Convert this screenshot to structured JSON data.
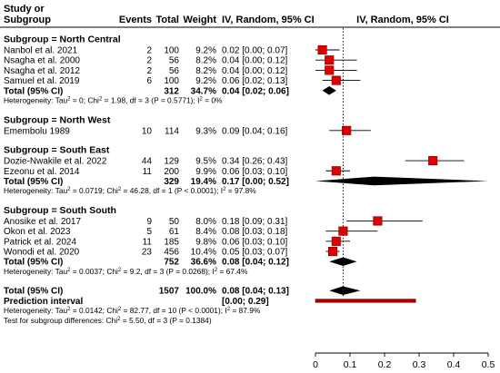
{
  "headers": {
    "study_line1": "Study or",
    "study_line2": "Subgroup",
    "events": "Events",
    "total": "Total",
    "weight": "Weight",
    "ci": "IV, Random, 95% CI",
    "plot": "IV, Random, 95% CI"
  },
  "chart_data": {
    "type": "forest",
    "x_ticks": [
      "0",
      "0.1",
      "0.2",
      "0.3",
      "0.4",
      "0.5"
    ],
    "xlim": [
      0,
      0.5
    ],
    "reference_line": 0.08,
    "rows": [
      {
        "kind": "group",
        "label": "Subgroup = North Central"
      },
      {
        "kind": "study",
        "label": "Nanbol et al. 2021",
        "events": "2",
        "total": "100",
        "weight": "9.2%",
        "ci_text": "0.02 [0.00; 0.07]",
        "est": 0.02,
        "lo": 0.0,
        "hi": 0.07
      },
      {
        "kind": "study",
        "label": "Nsagha  et al. 2000",
        "events": "2",
        "total": "56",
        "weight": "8.2%",
        "ci_text": "0.04 [0.00; 0.12]",
        "est": 0.04,
        "lo": 0.0,
        "hi": 0.12
      },
      {
        "kind": "study",
        "label": "Nsagha  et al. 2012",
        "events": "2",
        "total": "56",
        "weight": "8.2%",
        "ci_text": "0.04 [0.00; 0.12]",
        "est": 0.04,
        "lo": 0.0,
        "hi": 0.12
      },
      {
        "kind": "study",
        "label": "Samuel et al. 2019",
        "events": "6",
        "total": "100",
        "weight": "9.2%",
        "ci_text": "0.06 [0.02; 0.13]",
        "est": 0.06,
        "lo": 0.02,
        "hi": 0.13
      },
      {
        "kind": "total",
        "label": "Total (95% CI)",
        "total": "312",
        "weight": "34.7%",
        "ci_text": "0.04 [0.02; 0.06]",
        "est": 0.04,
        "lo": 0.02,
        "hi": 0.06
      },
      {
        "kind": "het",
        "pre": "Heterogeneity: Tau",
        "sup1": "2",
        "mid": " = 0; Chi",
        "sup2": "2",
        "post": " = 1.98, df = 3 (P = 0.5771); I",
        "sup3": "2",
        "end": " = 0%"
      },
      {
        "kind": "gap"
      },
      {
        "kind": "group",
        "label": "Subgroup = North West"
      },
      {
        "kind": "study",
        "label": "Emembolu  1989",
        "events": "10",
        "total": "114",
        "weight": "9.3%",
        "ci_text": "0.09 [0.04; 0.16]",
        "est": 0.09,
        "lo": 0.04,
        "hi": 0.16
      },
      {
        "kind": "gap"
      },
      {
        "kind": "group",
        "label": "Subgroup = South East"
      },
      {
        "kind": "study",
        "label": "Dozie-Nwakile et al. 2022",
        "events": "44",
        "total": "129",
        "weight": "9.5%",
        "ci_text": "0.34 [0.26; 0.43]",
        "est": 0.34,
        "lo": 0.26,
        "hi": 0.43
      },
      {
        "kind": "study",
        "label": "Ezeonu et al. 2014",
        "events": "11",
        "total": "200",
        "weight": "9.9%",
        "ci_text": "0.06 [0.03; 0.10]",
        "est": 0.06,
        "lo": 0.03,
        "hi": 0.1
      },
      {
        "kind": "total",
        "label": "Total (95% CI)",
        "total": "329",
        "weight": "19.4%",
        "ci_text": "0.17 [0.00; 0.52]",
        "est": 0.17,
        "lo": 0.0,
        "hi": 0.52
      },
      {
        "kind": "het",
        "pre": "Heterogeneity: Tau",
        "sup1": "2",
        "mid": " = 0.0719; Chi",
        "sup2": "2",
        "post": " = 46.28, df = 1 (P < 0.0001); I",
        "sup3": "2",
        "end": " = 97.8%"
      },
      {
        "kind": "gap"
      },
      {
        "kind": "group",
        "label": "Subgroup = South South"
      },
      {
        "kind": "study",
        "label": "Anosike  et al. 2017",
        "events": "9",
        "total": "50",
        "weight": "8.0%",
        "ci_text": "0.18 [0.09; 0.31]",
        "est": 0.18,
        "lo": 0.09,
        "hi": 0.31
      },
      {
        "kind": "study",
        "label": "Okon et al. 2023",
        "events": "5",
        "total": "61",
        "weight": "8.4%",
        "ci_text": "0.08 [0.03; 0.18]",
        "est": 0.08,
        "lo": 0.03,
        "hi": 0.18
      },
      {
        "kind": "study",
        "label": "Patrick  et al. 2024",
        "events": "11",
        "total": "185",
        "weight": "9.8%",
        "ci_text": "0.06 [0.03; 0.10]",
        "est": 0.06,
        "lo": 0.03,
        "hi": 0.1
      },
      {
        "kind": "study",
        "label": "Wonodi  et al. 2020",
        "events": "23",
        "total": "456",
        "weight": "10.4%",
        "ci_text": "0.05 [0.03; 0.07]",
        "est": 0.05,
        "lo": 0.03,
        "hi": 0.07
      },
      {
        "kind": "total",
        "label": "Total (95% CI)",
        "total": "752",
        "weight": "36.6%",
        "ci_text": "0.08 [0.04; 0.12]",
        "est": 0.08,
        "lo": 0.04,
        "hi": 0.12
      },
      {
        "kind": "het",
        "pre": "Heterogeneity: Tau",
        "sup1": "2",
        "mid": " = 0.0037; Chi",
        "sup2": "2",
        "post": " = 9.2, df = 3 (P = 0.0268); I",
        "sup3": "2",
        "end": " = 67.4%"
      },
      {
        "kind": "gap"
      },
      {
        "kind": "total",
        "label": "Total (95% CI)",
        "total": "1507",
        "weight": "100.0%",
        "ci_text": "0.08 [0.04; 0.13]",
        "est": 0.08,
        "lo": 0.04,
        "hi": 0.13
      },
      {
        "kind": "pred",
        "label": "Prediction interval",
        "ci_text": "[0.00; 0.29]",
        "lo": 0.0,
        "hi": 0.29
      },
      {
        "kind": "het",
        "pre": "Heterogeneity: Tau",
        "sup1": "2",
        "mid": " = 0.0142; Chi",
        "sup2": "2",
        "post": " = 82.77, df = 10 (P < 0.0001); I",
        "sup3": "2",
        "end": " = 87.9%"
      },
      {
        "kind": "het2",
        "pre": "Test for subgroup differences: Chi",
        "sup1": "2",
        "post": " = 5.50, df = 3 (P = 0.1384)"
      }
    ]
  },
  "colors": {
    "marker": "#e00000",
    "marker_edge": "#7a0000",
    "ci_line": "#000000",
    "diamond": "#000000",
    "prediction": "#a50000",
    "separator": "#000000"
  }
}
